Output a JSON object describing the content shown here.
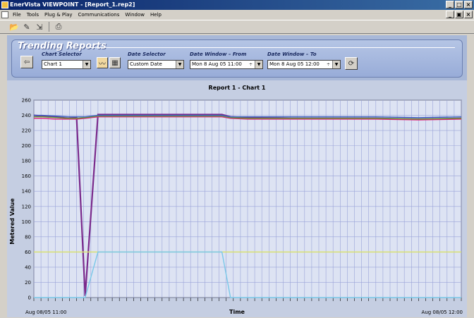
{
  "window": {
    "title": "EnerVista VIEWPOINT - [Report_1.rep2]",
    "minimize": "_",
    "maximize": "□",
    "close": "×"
  },
  "menu": {
    "items": [
      "File",
      "Tools",
      "Plug & Play",
      "Communications",
      "Window",
      "Help"
    ],
    "mdi_min": "_",
    "mdi_restore": "▣",
    "mdi_close": "×"
  },
  "toolbar": {
    "icons": [
      "open-icon",
      "edit-icon",
      "import-icon",
      "print-icon"
    ]
  },
  "trending": {
    "title": "Trending Reports",
    "chart_selector_label": "Chart Selector",
    "chart_selector_value": "Chart 1",
    "date_selector_label": "Date Selector",
    "date_selector_value": "Custom Date",
    "from_label": "Date Window – From",
    "from_value": "Mon  8 Aug 05 11:00",
    "to_label": "Date Window – To",
    "to_value": "Mon  8 Aug 05 12:00"
  },
  "chart_data": {
    "type": "line",
    "title": "Report 1 - Chart 1",
    "xlabel": "Time",
    "ylabel": "Metered Value",
    "x_start_label": "Aug 08/05 11:00",
    "x_end_label": "Aug 08/05 12:00",
    "x": [
      0,
      2,
      5,
      8,
      10,
      12,
      15,
      20,
      30,
      40,
      42,
      44,
      46,
      50,
      60,
      70,
      80,
      90,
      100
    ],
    "ylim": [
      0,
      260
    ],
    "yticks": [
      0,
      20,
      40,
      60,
      80,
      100,
      120,
      140,
      160,
      180,
      200,
      220,
      240,
      260
    ],
    "grid": true,
    "series": [
      {
        "color": "#7a2a8c",
        "values": [
          240,
          239,
          238,
          236,
          237,
          2,
          241,
          241,
          241,
          241,
          241,
          241,
          238,
          237,
          236,
          236,
          236,
          235,
          236
        ]
      },
      {
        "color": "#e0207a",
        "values": [
          236,
          236,
          235,
          235,
          235,
          236,
          238,
          238,
          238,
          238,
          238,
          238,
          236,
          235,
          235,
          235,
          235,
          234,
          235
        ]
      },
      {
        "color": "#6a9a30",
        "values": [
          238,
          238,
          237,
          236,
          236,
          237,
          239,
          239,
          239,
          239,
          239,
          239,
          237,
          236,
          236,
          236,
          236,
          235,
          236
        ]
      },
      {
        "color": "#3a60c0",
        "values": [
          240,
          240,
          239,
          238,
          238,
          238,
          240,
          240,
          240,
          240,
          240,
          240,
          238,
          238,
          238,
          238,
          238,
          237,
          238
        ]
      },
      {
        "color": "#d8e070",
        "values": [
          60,
          60,
          60,
          60,
          60,
          60,
          60,
          60,
          60,
          60,
          60,
          60,
          60,
          60,
          60,
          60,
          60,
          60,
          60
        ]
      },
      {
        "color": "#7ac8e8",
        "values": [
          0,
          0,
          0,
          0,
          0,
          0,
          60,
          60,
          60,
          60,
          60,
          60,
          0,
          0,
          0,
          0,
          0,
          0,
          0
        ]
      }
    ]
  }
}
